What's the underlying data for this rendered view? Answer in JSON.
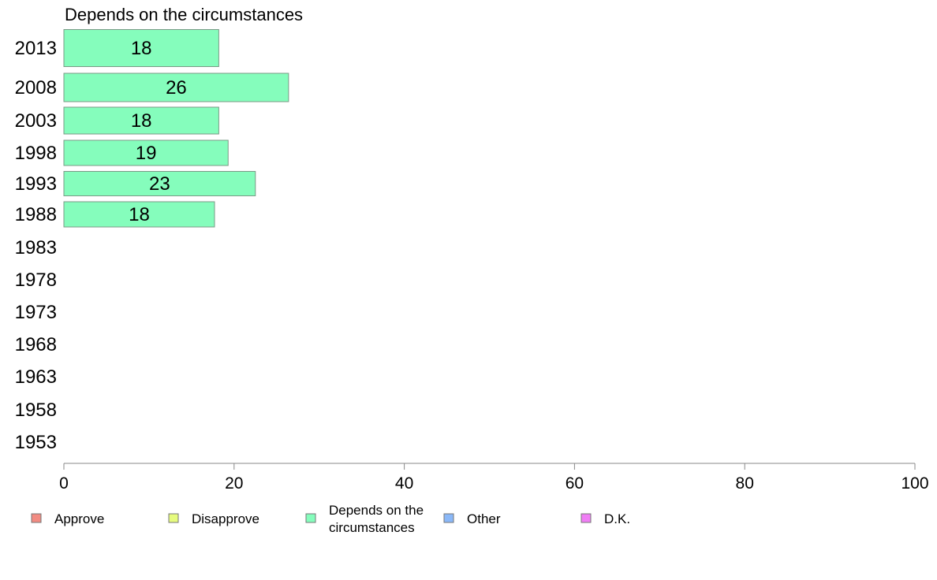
{
  "chart_data": {
    "type": "bar",
    "orientation": "horizontal",
    "title": "Depends on the circumstances",
    "categories": [
      "2013",
      "2008",
      "2003",
      "1998",
      "1993",
      "1988",
      "1983",
      "1978",
      "1973",
      "1968",
      "1963",
      "1958",
      "1953"
    ],
    "series": [
      {
        "name": "Depends on the circumstances",
        "values": [
          18.2,
          26.4,
          18.2,
          19.3,
          22.5,
          17.7,
          null,
          null,
          null,
          null,
          null,
          null,
          null
        ],
        "labels": [
          "18",
          "26",
          "18",
          "19",
          "23",
          "18",
          "",
          "",
          "",
          "",
          "",
          "",
          ""
        ]
      }
    ],
    "xlim": [
      0,
      100
    ],
    "xticks": [
      0,
      20,
      40,
      60,
      80,
      100
    ],
    "grid": false,
    "legend": {
      "position": "bottom",
      "items": [
        {
          "label": "Approve",
          "color": "#f28b82"
        },
        {
          "label": "Disapprove",
          "color": "#e6fb7e"
        },
        {
          "label": "Depends on the circumstances",
          "lines": [
            "Depends on the",
            "circumstances"
          ],
          "color": "#85fdbc"
        },
        {
          "label": "Other",
          "color": "#8ab8f8"
        },
        {
          "label": "D.K.",
          "color": "#f07ef5"
        }
      ]
    },
    "colors": {
      "bar": "#85fdbc",
      "bar_stroke": "#7a9a86",
      "axis": "#888888"
    }
  }
}
